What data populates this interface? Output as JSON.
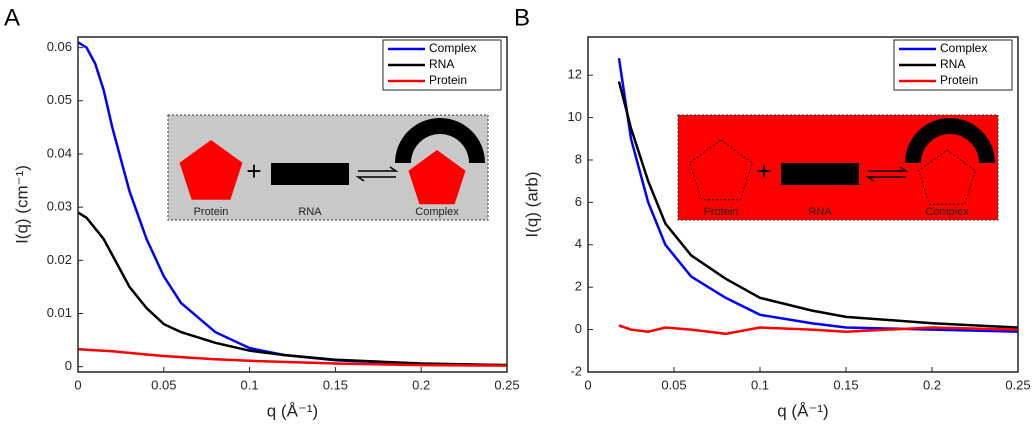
{
  "chart_data": [
    {
      "type": "line",
      "panel": "A",
      "xlabel": "q (Å⁻¹)",
      "ylabel": "I(q) (cm⁻¹)",
      "x": [
        0,
        0.005,
        0.01,
        0.015,
        0.02,
        0.03,
        0.04,
        0.05,
        0.06,
        0.08,
        0.1,
        0.12,
        0.15,
        0.2,
        0.25
      ],
      "series": [
        {
          "name": "Complex",
          "color": "#0000ff",
          "values": [
            0.061,
            0.06,
            0.057,
            0.052,
            0.045,
            0.033,
            0.024,
            0.017,
            0.012,
            0.0065,
            0.0035,
            0.0022,
            0.0012,
            0.0005,
            0.0003
          ]
        },
        {
          "name": "RNA",
          "color": "#000000",
          "values": [
            0.029,
            0.028,
            0.026,
            0.024,
            0.021,
            0.015,
            0.011,
            0.008,
            0.0065,
            0.0045,
            0.003,
            0.0022,
            0.0013,
            0.0006,
            0.0003
          ]
        },
        {
          "name": "Protein",
          "color": "#ff0000",
          "values": [
            0.0033,
            0.0032,
            0.0031,
            0.003,
            0.0029,
            0.0026,
            0.0023,
            0.002,
            0.0018,
            0.0014,
            0.0011,
            0.0009,
            0.0006,
            0.0003,
            0.0002
          ]
        }
      ],
      "xlim": [
        0,
        0.25
      ],
      "xticks": [
        0,
        0.05,
        0.1,
        0.15,
        0.2,
        0.25
      ],
      "ylim": [
        -0.001,
        0.062
      ],
      "yticks": [
        0,
        0.01,
        0.02,
        0.03,
        0.04,
        0.05,
        0.06
      ],
      "legend": "upper right",
      "inset": {
        "color": "#c8c8c8",
        "labels": [
          "Protein",
          "RNA",
          "Complex"
        ]
      }
    },
    {
      "type": "line",
      "panel": "B",
      "xlabel": "q (Å⁻¹)",
      "ylabel": "I(q) (arb)",
      "x": [
        0.018,
        0.025,
        0.035,
        0.045,
        0.06,
        0.08,
        0.1,
        0.13,
        0.15,
        0.2,
        0.25
      ],
      "series": [
        {
          "name": "Complex",
          "color": "#0000ff",
          "values": [
            12.8,
            9,
            6,
            4,
            2.5,
            1.5,
            0.7,
            0.3,
            0.1,
            0,
            -0.1
          ]
        },
        {
          "name": "RNA",
          "color": "#000000",
          "values": [
            11.7,
            9.5,
            7,
            5,
            3.5,
            2.4,
            1.5,
            0.9,
            0.6,
            0.3,
            0.1
          ]
        },
        {
          "name": "Protein",
          "color": "#ff0000",
          "values": [
            0.2,
            0,
            -0.1,
            0.1,
            0,
            -0.2,
            0.1,
            0,
            -0.1,
            0.1,
            0
          ]
        }
      ],
      "xlim": [
        0,
        0.25
      ],
      "xticks": [
        0,
        0.05,
        0.1,
        0.15,
        0.2,
        0.25
      ],
      "ylim": [
        -2,
        13.8
      ],
      "yticks": [
        -2,
        0,
        2,
        4,
        6,
        8,
        10,
        12
      ],
      "legend": "upper right",
      "inset": {
        "color": "#ff0000",
        "labels": [
          "Protein",
          "RNA",
          "Complex"
        ]
      }
    }
  ]
}
